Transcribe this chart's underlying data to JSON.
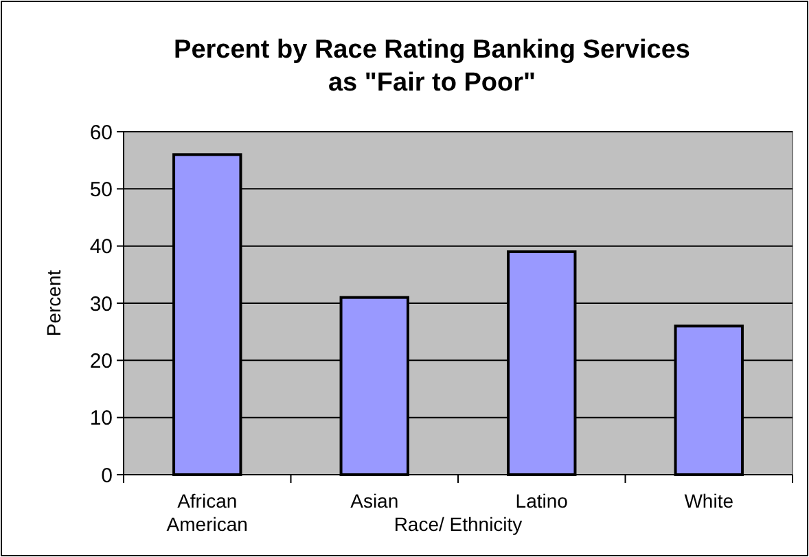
{
  "chart_data": {
    "type": "bar",
    "title": "Percent by Race Rating Banking Services as \"Fair to Poor\"",
    "categories": [
      "African American",
      "Asian",
      "Latino",
      "White"
    ],
    "values": [
      56,
      31,
      39,
      26
    ],
    "color": "#9999ff",
    "xlabel": "Race/ Ethnicity",
    "ylabel": "Percent",
    "ylim": [
      0,
      60
    ],
    "yticks": [
      0,
      10,
      20,
      30,
      40,
      50,
      60
    ],
    "grid": "y"
  }
}
